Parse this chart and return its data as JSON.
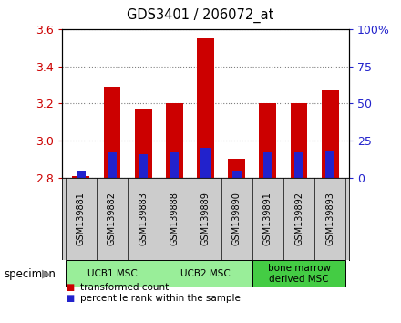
{
  "title": "GDS3401 / 206072_at",
  "specimens": [
    "GSM139881",
    "GSM139882",
    "GSM139883",
    "GSM139888",
    "GSM139889",
    "GSM139890",
    "GSM139891",
    "GSM139892",
    "GSM139893"
  ],
  "transformed_count": [
    2.81,
    3.29,
    3.17,
    3.2,
    3.55,
    2.9,
    3.2,
    3.2,
    3.27
  ],
  "percentile_rank": [
    5,
    17,
    16,
    17,
    20,
    5,
    17,
    17,
    18
  ],
  "bar_bottom": 2.8,
  "ylim": [
    2.8,
    3.6
  ],
  "y2lim": [
    0,
    100
  ],
  "yticks": [
    2.8,
    3.0,
    3.2,
    3.4,
    3.6
  ],
  "y2ticks": [
    0,
    25,
    50,
    75,
    100
  ],
  "red_color": "#cc0000",
  "blue_color": "#2222cc",
  "bar_width": 0.55,
  "blue_bar_width": 0.3,
  "groups": [
    {
      "label": "UCB1 MSC",
      "indices": [
        0,
        1,
        2
      ],
      "color": "#99ee99"
    },
    {
      "label": "UCB2 MSC",
      "indices": [
        3,
        4,
        5
      ],
      "color": "#99ee99"
    },
    {
      "label": "bone marrow\nderived MSC",
      "indices": [
        6,
        7,
        8
      ],
      "color": "#44cc44"
    }
  ],
  "specimen_label": "specimen",
  "legend_red": "transformed count",
  "legend_blue": "percentile rank within the sample"
}
